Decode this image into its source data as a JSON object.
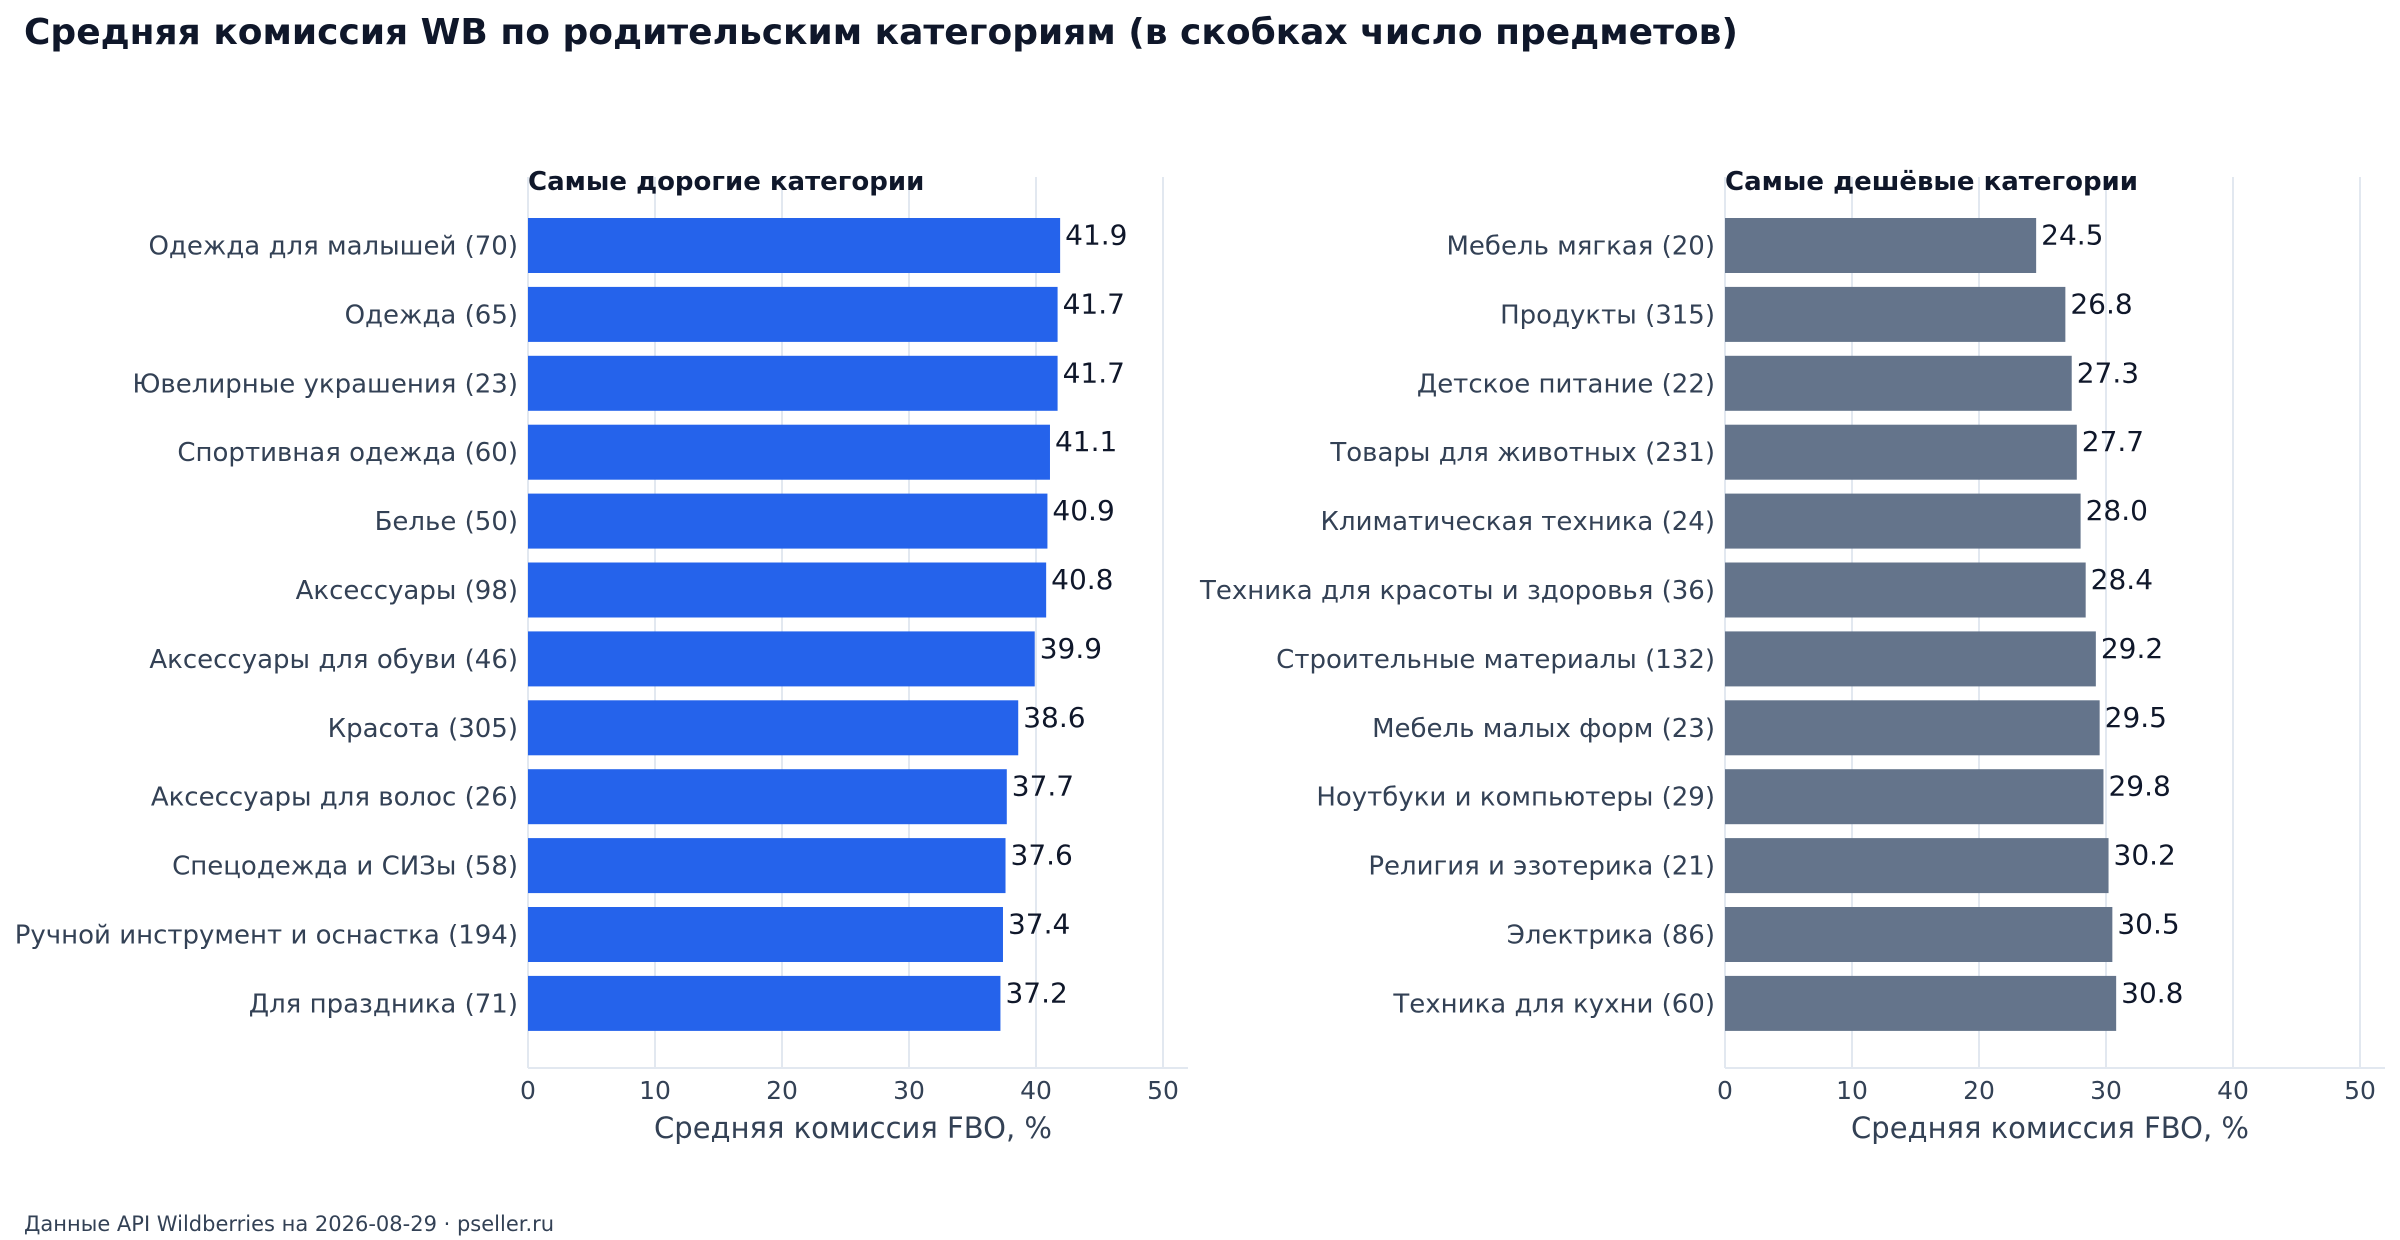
{
  "title": "Средняя комиссия WB по родительским категориям (в скобках число предметов)",
  "footer": "Данные API Wildberries на 2026-08-29  ·  pseller.ru",
  "chart_data": [
    {
      "type": "bar",
      "orientation": "horizontal",
      "title": "Самые дорогие категории",
      "xlabel": "Средняя комиссия FBO, %",
      "ylabel": "",
      "xlim": [
        0,
        52
      ],
      "xticks": [
        0,
        10,
        20,
        30,
        40,
        50
      ],
      "grid": "vertical",
      "color": "#2563eb",
      "categories": [
        "Одежда для малышей (70)",
        "Одежда (65)",
        "Ювелирные украшения (23)",
        "Спортивная одежда (60)",
        "Белье (50)",
        "Аксессуары (98)",
        "Аксессуары для обуви (46)",
        "Красота (305)",
        "Аксессуары для волос (26)",
        "Спецодежда и СИЗы (58)",
        "Ручной инструмент и оснастка (194)",
        "Для праздника (71)"
      ],
      "values": [
        41.9,
        41.7,
        41.7,
        41.1,
        40.9,
        40.8,
        39.9,
        38.6,
        37.7,
        37.6,
        37.4,
        37.2
      ]
    },
    {
      "type": "bar",
      "orientation": "horizontal",
      "title": "Самые дешёвые категории",
      "xlabel": "Средняя комиссия FBO, %",
      "ylabel": "",
      "xlim": [
        0,
        52
      ],
      "xticks": [
        0,
        10,
        20,
        30,
        40,
        50
      ],
      "grid": "vertical",
      "color": "#64748b",
      "categories": [
        "Мебель мягкая (20)",
        "Продукты (315)",
        "Детское питание (22)",
        "Товары для животных (231)",
        "Климатическая техника (24)",
        "Техника для красоты и здоровья (36)",
        "Строительные материалы (132)",
        "Мебель малых форм (23)",
        "Ноутбуки и компьютеры (29)",
        "Религия и эзотерика (21)",
        "Электрика (86)",
        "Техника для кухни (60)"
      ],
      "values": [
        24.5,
        26.8,
        27.3,
        27.7,
        28.0,
        28.4,
        29.2,
        29.5,
        29.8,
        30.2,
        30.5,
        30.8
      ]
    }
  ]
}
